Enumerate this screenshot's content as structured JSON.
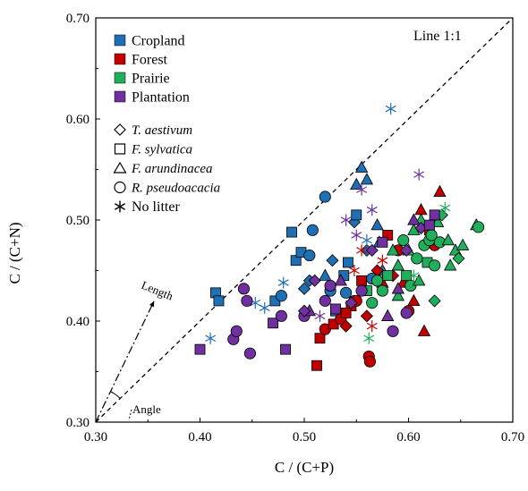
{
  "chart_data": {
    "type": "scatter",
    "xlabel": "C / (C+P)",
    "ylabel": "C / (C+N)",
    "xlim": [
      0.3,
      0.7
    ],
    "ylim": [
      0.3,
      0.7
    ],
    "x_ticks": [
      "0.30",
      "0.40",
      "0.50",
      "0.60",
      "0.70"
    ],
    "y_ticks": [
      "0.30",
      "0.40",
      "0.50",
      "0.60",
      "0.70"
    ],
    "grid": false,
    "legend_position": "top-left",
    "reference_line": {
      "label": "Line 1:1",
      "style": "dashed",
      "from": [
        0.3,
        0.3
      ],
      "to": [
        0.7,
        0.7
      ]
    },
    "annotations": {
      "length_label": "Length",
      "angle_label": "Angle",
      "length_vector": {
        "from": [
          0.3,
          0.3
        ],
        "to": [
          0.356,
          0.42
        ]
      }
    },
    "land_uses": [
      {
        "name": "Cropland",
        "color": "#1f6fb5"
      },
      {
        "name": "Forest",
        "color": "#c00000"
      },
      {
        "name": "Prairie",
        "color": "#1fae5b"
      },
      {
        "name": "Plantation",
        "color": "#7030a0"
      }
    ],
    "litters": [
      {
        "name": "T. aestivum",
        "marker": "diamond"
      },
      {
        "name": "F. sylvatica",
        "marker": "square"
      },
      {
        "name": "F. arundinacea",
        "marker": "triangle"
      },
      {
        "name": "R. pseudoacacia",
        "marker": "circle"
      },
      {
        "name": "No litter",
        "marker": "asterisk"
      }
    ],
    "series": [
      {
        "name": "Cropland",
        "points": [
          [
            0.415,
            0.428,
            "square"
          ],
          [
            0.418,
            0.42,
            "square"
          ],
          [
            0.472,
            0.42,
            "square"
          ],
          [
            0.478,
            0.425,
            "circle"
          ],
          [
            0.488,
            0.488,
            "square"
          ],
          [
            0.492,
            0.46,
            "square"
          ],
          [
            0.497,
            0.468,
            "square"
          ],
          [
            0.505,
            0.465,
            "circle"
          ],
          [
            0.505,
            0.44,
            "diamond"
          ],
          [
            0.508,
            0.49,
            "circle"
          ],
          [
            0.52,
            0.523,
            "circle"
          ],
          [
            0.525,
            0.43,
            "circle"
          ],
          [
            0.527,
            0.46,
            "diamond"
          ],
          [
            0.53,
            0.41,
            "square"
          ],
          [
            0.538,
            0.445,
            "square"
          ],
          [
            0.542,
            0.458,
            "square"
          ],
          [
            0.548,
            0.498,
            "diamond"
          ],
          [
            0.55,
            0.505,
            "square"
          ],
          [
            0.55,
            0.535,
            "triangle"
          ],
          [
            0.555,
            0.552,
            "triangle"
          ],
          [
            0.56,
            0.54,
            "triangle"
          ],
          [
            0.57,
            0.495,
            "triangle"
          ],
          [
            0.572,
            0.478,
            "triangle"
          ],
          [
            0.575,
            0.45,
            "triangle"
          ],
          [
            0.56,
            0.47,
            "diamond"
          ],
          [
            0.565,
            0.442,
            "circle"
          ],
          [
            0.548,
            0.42,
            "circle"
          ],
          [
            0.5,
            0.432,
            "diamond"
          ],
          [
            0.52,
            0.445,
            "triangle"
          ],
          [
            0.54,
            0.428,
            "circle"
          ],
          [
            0.583,
            0.61,
            "asterisk"
          ],
          [
            0.41,
            0.383,
            "asterisk"
          ],
          [
            0.453,
            0.418,
            "asterisk"
          ],
          [
            0.462,
            0.413,
            "asterisk"
          ],
          [
            0.48,
            0.438,
            "asterisk"
          ],
          [
            0.56,
            0.48,
            "asterisk"
          ]
        ]
      },
      {
        "name": "Forest",
        "points": [
          [
            0.512,
            0.356,
            "square"
          ],
          [
            0.515,
            0.383,
            "square"
          ],
          [
            0.52,
            0.392,
            "circle"
          ],
          [
            0.528,
            0.397,
            "square"
          ],
          [
            0.535,
            0.402,
            "circle"
          ],
          [
            0.54,
            0.395,
            "diamond"
          ],
          [
            0.545,
            0.415,
            "square"
          ],
          [
            0.55,
            0.42,
            "circle"
          ],
          [
            0.555,
            0.44,
            "square"
          ],
          [
            0.56,
            0.405,
            "diamond"
          ],
          [
            0.562,
            0.365,
            "circle"
          ],
          [
            0.563,
            0.36,
            "circle"
          ],
          [
            0.57,
            0.45,
            "diamond"
          ],
          [
            0.575,
            0.438,
            "triangle"
          ],
          [
            0.58,
            0.485,
            "square"
          ],
          [
            0.585,
            0.445,
            "diamond"
          ],
          [
            0.59,
            0.47,
            "circle"
          ],
          [
            0.595,
            0.438,
            "triangle"
          ],
          [
            0.6,
            0.41,
            "circle"
          ],
          [
            0.605,
            0.42,
            "triangle"
          ],
          [
            0.612,
            0.51,
            "triangle"
          ],
          [
            0.615,
            0.39,
            "triangle"
          ],
          [
            0.62,
            0.49,
            "square"
          ],
          [
            0.625,
            0.475,
            "circle"
          ],
          [
            0.63,
            0.528,
            "triangle"
          ],
          [
            0.555,
            0.47,
            "asterisk"
          ],
          [
            0.565,
            0.395,
            "asterisk"
          ],
          [
            0.575,
            0.46,
            "asterisk"
          ],
          [
            0.548,
            0.45,
            "asterisk"
          ],
          [
            0.54,
            0.408,
            "square"
          ]
        ]
      },
      {
        "name": "Prairie",
        "points": [
          [
            0.56,
            0.43,
            "square"
          ],
          [
            0.565,
            0.418,
            "circle"
          ],
          [
            0.575,
            0.43,
            "circle"
          ],
          [
            0.58,
            0.445,
            "square"
          ],
          [
            0.585,
            0.47,
            "triangle"
          ],
          [
            0.59,
            0.455,
            "triangle"
          ],
          [
            0.595,
            0.48,
            "circle"
          ],
          [
            0.598,
            0.445,
            "square"
          ],
          [
            0.6,
            0.47,
            "triangle"
          ],
          [
            0.602,
            0.435,
            "circle"
          ],
          [
            0.605,
            0.49,
            "triangle"
          ],
          [
            0.608,
            0.462,
            "circle"
          ],
          [
            0.61,
            0.44,
            "triangle"
          ],
          [
            0.612,
            0.5,
            "triangle"
          ],
          [
            0.615,
            0.475,
            "circle"
          ],
          [
            0.618,
            0.458,
            "square"
          ],
          [
            0.62,
            0.48,
            "circle"
          ],
          [
            0.622,
            0.485,
            "circle"
          ],
          [
            0.625,
            0.455,
            "circle"
          ],
          [
            0.628,
            0.498,
            "triangle"
          ],
          [
            0.63,
            0.478,
            "circle"
          ],
          [
            0.632,
            0.505,
            "diamond"
          ],
          [
            0.638,
            0.48,
            "triangle"
          ],
          [
            0.64,
            0.455,
            "triangle"
          ],
          [
            0.645,
            0.47,
            "triangle"
          ],
          [
            0.648,
            0.462,
            "diamond"
          ],
          [
            0.652,
            0.475,
            "triangle"
          ],
          [
            0.665,
            0.495,
            "triangle"
          ],
          [
            0.667,
            0.493,
            "circle"
          ],
          [
            0.635,
            0.512,
            "asterisk"
          ],
          [
            0.562,
            0.383,
            "asterisk"
          ],
          [
            0.605,
            0.445,
            "asterisk"
          ],
          [
            0.59,
            0.425,
            "triangle"
          ],
          [
            0.625,
            0.42,
            "diamond"
          ],
          [
            0.57,
            0.44,
            "circle"
          ]
        ]
      },
      {
        "name": "Plantation",
        "points": [
          [
            0.4,
            0.372,
            "square"
          ],
          [
            0.432,
            0.382,
            "circle"
          ],
          [
            0.435,
            0.39,
            "circle"
          ],
          [
            0.442,
            0.432,
            "circle"
          ],
          [
            0.445,
            0.42,
            "circle"
          ],
          [
            0.448,
            0.368,
            "circle"
          ],
          [
            0.47,
            0.398,
            "square"
          ],
          [
            0.478,
            0.405,
            "circle"
          ],
          [
            0.482,
            0.372,
            "square"
          ],
          [
            0.5,
            0.405,
            "circle"
          ],
          [
            0.505,
            0.41,
            "triangle"
          ],
          [
            0.51,
            0.44,
            "diamond"
          ],
          [
            0.52,
            0.42,
            "circle"
          ],
          [
            0.525,
            0.435,
            "circle"
          ],
          [
            0.53,
            0.412,
            "square"
          ],
          [
            0.535,
            0.44,
            "triangle"
          ],
          [
            0.545,
            0.418,
            "diamond"
          ],
          [
            0.555,
            0.43,
            "circle"
          ],
          [
            0.565,
            0.47,
            "diamond"
          ],
          [
            0.575,
            0.478,
            "square"
          ],
          [
            0.58,
            0.405,
            "triangle"
          ],
          [
            0.585,
            0.39,
            "circle"
          ],
          [
            0.59,
            0.432,
            "triangle"
          ],
          [
            0.598,
            0.408,
            "circle"
          ],
          [
            0.605,
            0.5,
            "triangle"
          ],
          [
            0.612,
            0.492,
            "diamond"
          ],
          [
            0.62,
            0.495,
            "square"
          ],
          [
            0.625,
            0.505,
            "square"
          ],
          [
            0.598,
            0.47,
            "diamond"
          ],
          [
            0.61,
            0.545,
            "asterisk"
          ],
          [
            0.555,
            0.53,
            "asterisk"
          ],
          [
            0.54,
            0.5,
            "asterisk"
          ],
          [
            0.565,
            0.51,
            "asterisk"
          ],
          [
            0.55,
            0.485,
            "asterisk"
          ],
          [
            0.515,
            0.405,
            "asterisk"
          ],
          [
            0.5,
            0.41,
            "diamond"
          ]
        ]
      }
    ]
  }
}
